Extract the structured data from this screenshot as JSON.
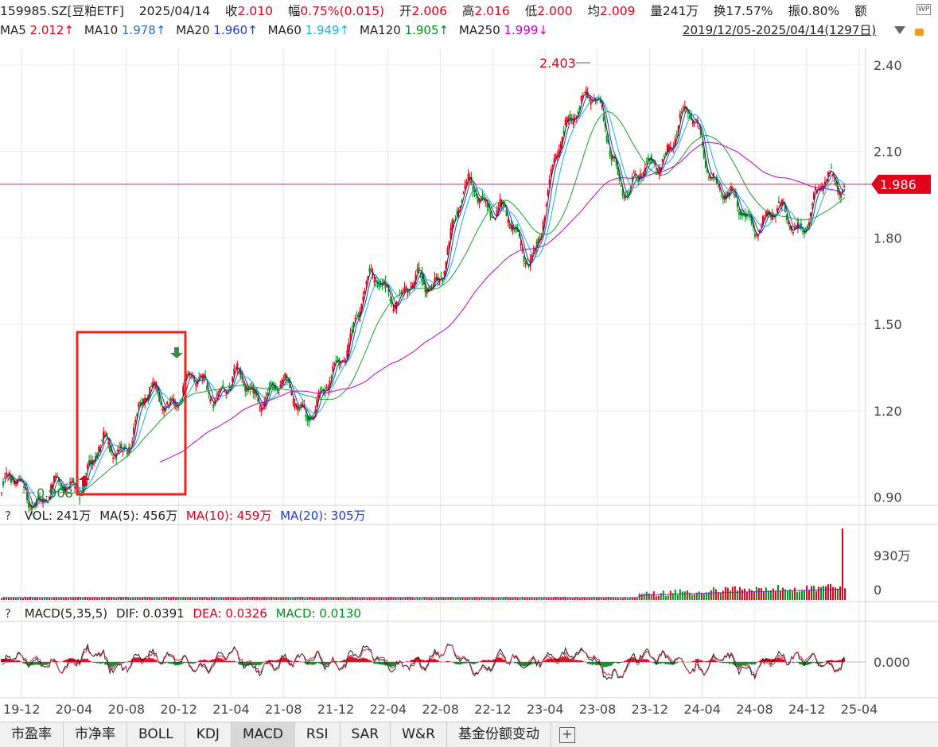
{
  "quote": {
    "code": "159985.SZ[豆粕ETF]",
    "date": "2025/04/14",
    "close_label": "收",
    "close": "2.010",
    "change_label": "幅",
    "change": "0.75%(0.015)",
    "open_label": "开",
    "open": "2.006",
    "high_label": "高",
    "high": "2.016",
    "low_label": "低",
    "low": "2.000",
    "avg_label": "均",
    "avg": "2.009",
    "vol_label": "量",
    "vol": "241万",
    "turnover_label": "换",
    "turnover": "17.57%",
    "amp_label": "振",
    "amp": "0.80%",
    "amount_label": "额"
  },
  "ma_line": {
    "ma5": "MA5",
    "ma5_v": "2.012↑",
    "ma10": "MA10",
    "ma10_v": "1.978↑",
    "ma20": "MA20",
    "ma20_v": "1.960↑",
    "ma60": "MA60",
    "ma60_v": "1.949↑",
    "ma120": "MA120",
    "ma120_v": "1.905↑",
    "ma250": "MA250",
    "ma250_v": "1.999↓",
    "range": "2019/12/05-2025/04/14(1297日)"
  },
  "vol_info": {
    "q": "?",
    "vol": "VOL: 241万",
    "ma5": "MA(5): 456万",
    "ma10": "MA(10): 459万",
    "ma20": "MA(20): 305万"
  },
  "macd_info": {
    "q": "?",
    "name": "MACD(5,35,5)",
    "dif": "DIF: 0.0391",
    "dea": "DEA: 0.0326",
    "macd": "MACD: 0.0130"
  },
  "tabs": [
    "市盈率",
    "市净率",
    "BOLL",
    "KDJ",
    "MACD",
    "RSI",
    "SAR",
    "W&R",
    "基金份额变动"
  ],
  "active_tab": "MACD",
  "colors": {
    "up": "#e0001b",
    "down": "#009020",
    "ma5": "#222222",
    "ma10": "#1e3cc8",
    "ma20": "#18b4d2",
    "ma60": "#1aa02a",
    "ma250": "#c000c8",
    "highlight": "#e8261c"
  },
  "chart_data": {
    "type": "line",
    "title": "",
    "x": [
      "19-12",
      "20-04",
      "20-08",
      "20-12",
      "21-04",
      "21-08",
      "21-12",
      "22-04",
      "22-08",
      "22-12",
      "23-04",
      "23-08",
      "23-12",
      "24-04",
      "24-08",
      "24-12",
      "25-04"
    ],
    "series": [
      {
        "name": "close",
        "values": [
          0.93,
          0.91,
          1.05,
          1.25,
          1.29,
          1.27,
          1.22,
          1.62,
          1.62,
          1.97,
          1.76,
          2.3,
          1.98,
          2.2,
          1.88,
          1.86,
          2.01
        ]
      }
    ],
    "price_ticks": [
      "2.40",
      "2.10",
      "1.80",
      "1.50",
      "1.20",
      "0.90"
    ],
    "ylim": [
      0.88,
      2.46
    ],
    "max_label": "2.403",
    "min_label": "0.908",
    "current_label": "1.986",
    "current_value": 1.986,
    "vol_ticks": [
      "930万",
      "0"
    ],
    "macd_ticks": [
      "0.000"
    ]
  }
}
